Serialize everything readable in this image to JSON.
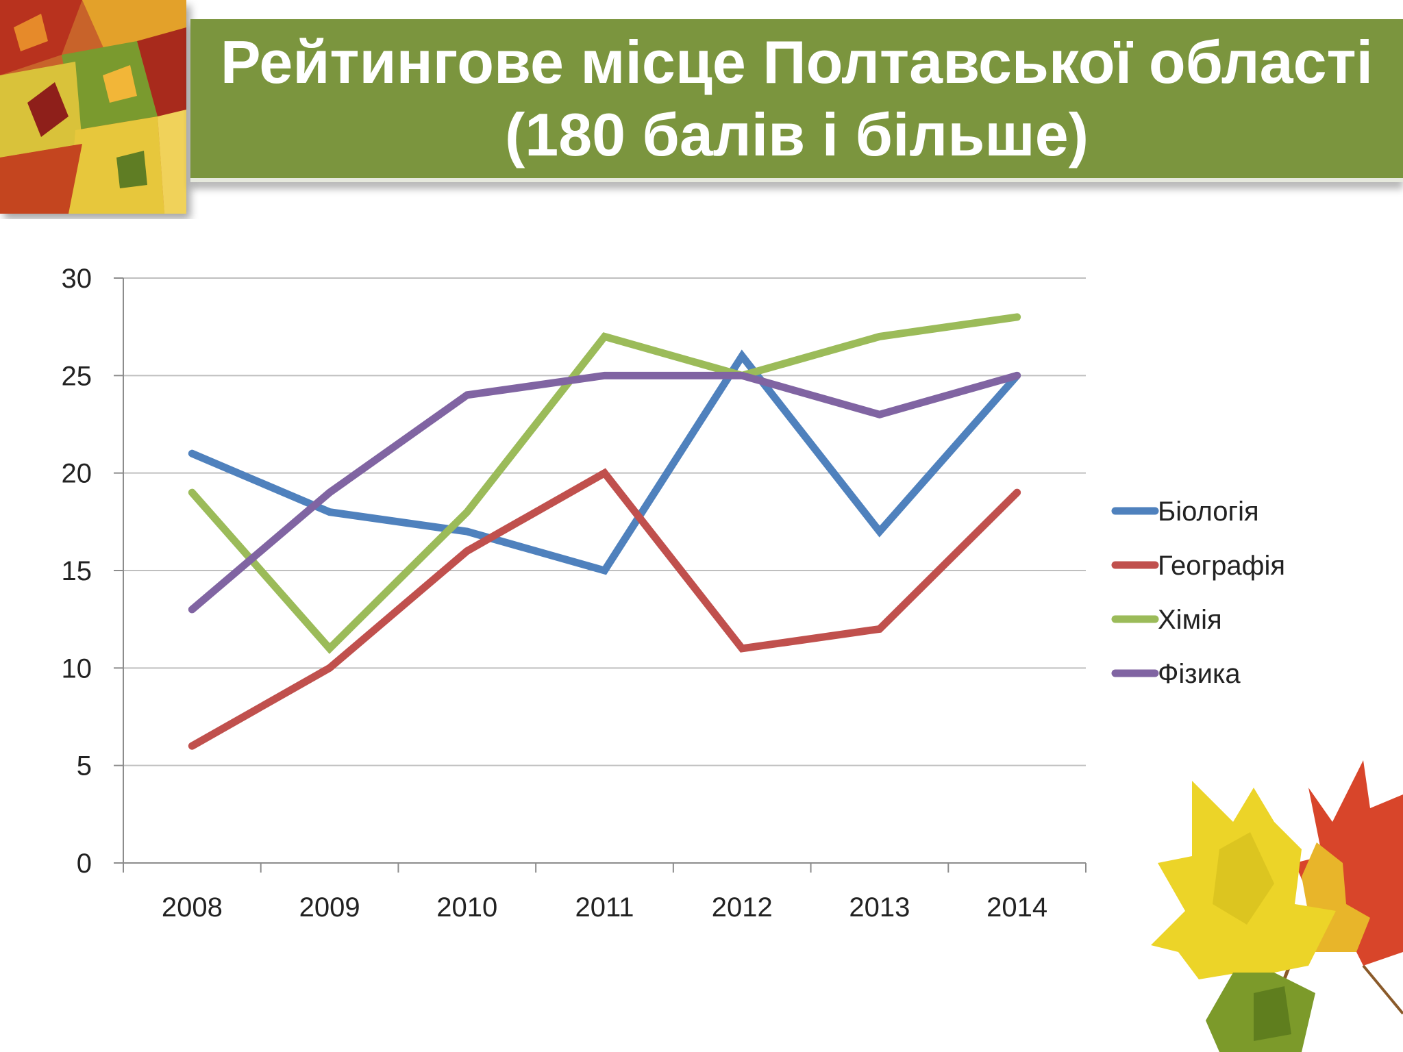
{
  "slide": {
    "title_line1": "Рейтингове місце Полтавської області",
    "title_line2": "(180 балів і більше)"
  },
  "chart_data": {
    "type": "line",
    "title": "",
    "xlabel": "",
    "ylabel": "",
    "categories": [
      "2008",
      "2009",
      "2010",
      "2011",
      "2012",
      "2013",
      "2014"
    ],
    "ylim": [
      0,
      30
    ],
    "yticks": [
      0,
      5,
      10,
      15,
      20,
      25,
      30
    ],
    "grid": true,
    "legend_position": "right",
    "series": [
      {
        "name": "Біологія",
        "color": "#4f81bd",
        "values": [
          21,
          18,
          17,
          15,
          26,
          17,
          25
        ]
      },
      {
        "name": "Географія",
        "color": "#c0504d",
        "values": [
          6,
          10,
          16,
          20,
          11,
          12,
          19
        ]
      },
      {
        "name": "Хімія",
        "color": "#9bbb59",
        "values": [
          19,
          11,
          18,
          27,
          25,
          27,
          28
        ]
      },
      {
        "name": "Фізика",
        "color": "#8064a2",
        "values": [
          13,
          19,
          24,
          25,
          25,
          23,
          25
        ]
      }
    ]
  }
}
